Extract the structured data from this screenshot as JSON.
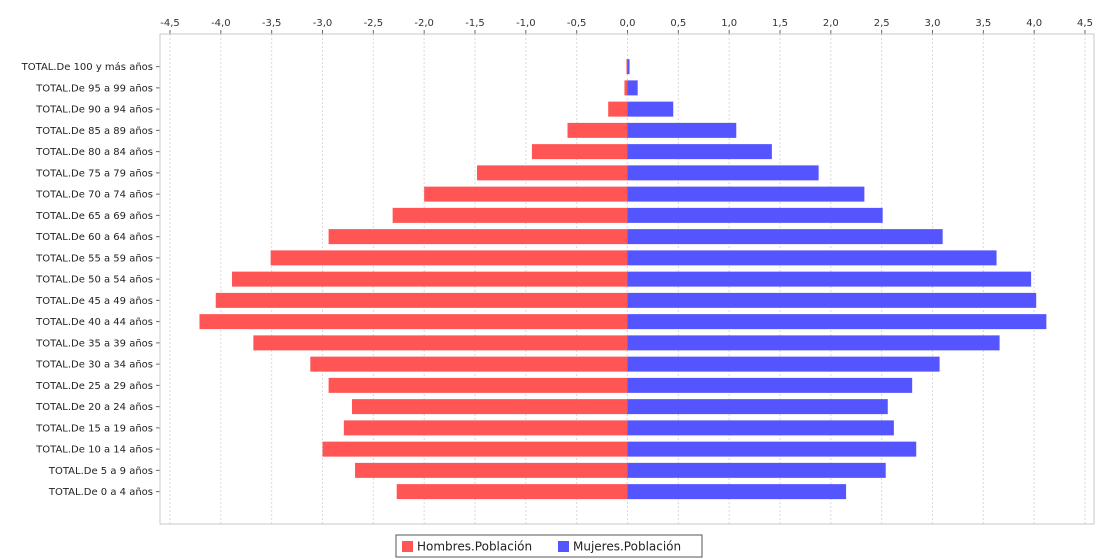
{
  "chart_data": {
    "type": "bar",
    "orientation": "horizontal",
    "layout": "population-pyramid",
    "categories": [
      "TOTAL.De 100 y más años",
      "TOTAL.De 95 a 99 años",
      "TOTAL.De 90 a 94 años",
      "TOTAL.De 85 a 89 años",
      "TOTAL.De 80 a 84 años",
      "TOTAL.De 75 a 79 años",
      "TOTAL.De 70 a 74 años",
      "TOTAL.De 65 a 69 años",
      "TOTAL.De 60 a 64 años",
      "TOTAL.De 55 a 59 años",
      "TOTAL.De 50 a 54 años",
      "TOTAL.De 45 a 49 años",
      "TOTAL.De 40 a 44 años",
      "TOTAL.De 35 a 39 años",
      "TOTAL.De 30 a 34 años",
      "TOTAL.De 25 a 29 años",
      "TOTAL.De 20 a 24 años",
      "TOTAL.De 15 a 19 años",
      "TOTAL.De 10 a 14 años",
      "TOTAL.De 5 a 9 años",
      "TOTAL.De 0 a 4 años"
    ],
    "series": [
      {
        "name": "Hombres.Población",
        "color": "#ff5555",
        "values": [
          -0.01,
          -0.03,
          -0.19,
          -0.59,
          -0.94,
          -1.48,
          -2.0,
          -2.31,
          -2.94,
          -3.51,
          -3.89,
          -4.05,
          -4.21,
          -3.68,
          -3.12,
          -2.94,
          -2.71,
          -2.79,
          -3.0,
          -2.68,
          -2.27
        ]
      },
      {
        "name": "Mujeres.Población",
        "color": "#5555ff",
        "values": [
          0.02,
          0.1,
          0.45,
          1.07,
          1.42,
          1.88,
          2.33,
          2.51,
          3.1,
          3.63,
          3.97,
          4.02,
          4.12,
          3.66,
          3.07,
          2.8,
          2.56,
          2.62,
          2.84,
          2.54,
          2.15
        ]
      }
    ],
    "xlim": [
      -4.5,
      4.5
    ],
    "xticks": [
      "-4,5",
      "-4,0",
      "-3,5",
      "-3,0",
      "-2,5",
      "-2,0",
      "-1,5",
      "-1,0",
      "-0,5",
      "0,0",
      "0,5",
      "1,0",
      "1,5",
      "2,0",
      "2,5",
      "3,0",
      "3,5",
      "4,0",
      "4,5"
    ],
    "x_axis_position": "top",
    "grid": true,
    "legend_position": "bottom-center",
    "title": "",
    "xlabel": "",
    "ylabel": ""
  }
}
